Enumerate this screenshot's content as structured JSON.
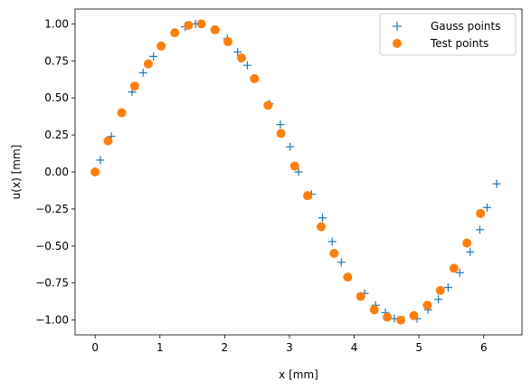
{
  "chart_data": {
    "type": "scatter",
    "title": "",
    "xlabel": "x [mm]",
    "ylabel": "u(x) [mm]",
    "xlim": [
      -0.31,
      6.59
    ],
    "ylim": [
      -1.1,
      1.1
    ],
    "xticks": [
      0,
      1,
      2,
      3,
      4,
      5,
      6
    ],
    "xtick_labels": [
      "0",
      "1",
      "2",
      "3",
      "4",
      "5",
      "6"
    ],
    "yticks": [
      -1.0,
      -0.75,
      -0.5,
      -0.25,
      0.0,
      0.25,
      0.5,
      0.75,
      1.0
    ],
    "ytick_labels": [
      "−1.00",
      "−0.75",
      "−0.50",
      "−0.25",
      "0.00",
      "0.25",
      "0.50",
      "0.75",
      "1.00"
    ],
    "grid": false,
    "legend_position": "top-right",
    "series": [
      {
        "name": "Gauss points",
        "marker": "plus",
        "color": "#1f77b4",
        "x": [
          0.08,
          0.25,
          0.57,
          0.74,
          0.9,
          1.22,
          1.39,
          1.55,
          1.87,
          2.04,
          2.2,
          2.35,
          2.69,
          2.86,
          3.01,
          3.14,
          3.34,
          3.51,
          3.66,
          3.8,
          4.16,
          4.33,
          4.48,
          4.62,
          4.97,
          5.14,
          5.3,
          5.45,
          5.63,
          5.79,
          5.94,
          6.05,
          6.2
        ],
        "y": [
          0.08,
          0.24,
          0.54,
          0.67,
          0.78,
          0.94,
          0.98,
          1.0,
          0.96,
          0.9,
          0.81,
          0.72,
          0.46,
          0.32,
          0.17,
          0.0,
          -0.15,
          -0.31,
          -0.47,
          -0.61,
          -0.82,
          -0.9,
          -0.95,
          -0.99,
          -0.99,
          -0.93,
          -0.86,
          -0.78,
          -0.68,
          -0.54,
          -0.39,
          -0.24,
          -0.08
        ]
      },
      {
        "name": "Test points",
        "marker": "circle",
        "color": "#ff7f0e",
        "x": [
          0.0,
          0.2,
          0.41,
          0.61,
          0.82,
          1.02,
          1.23,
          1.44,
          1.64,
          1.85,
          2.05,
          2.26,
          2.46,
          2.67,
          2.87,
          3.08,
          3.28,
          3.49,
          3.69,
          3.9,
          4.1,
          4.31,
          4.51,
          4.72,
          4.92,
          5.13,
          5.33,
          5.54,
          5.74,
          5.95
        ],
        "y": [
          0.0,
          0.21,
          0.4,
          0.58,
          0.73,
          0.85,
          0.94,
          0.99,
          1.0,
          0.96,
          0.88,
          0.77,
          0.63,
          0.45,
          0.26,
          0.04,
          -0.16,
          -0.37,
          -0.55,
          -0.71,
          -0.84,
          -0.93,
          -0.98,
          -1.0,
          -0.97,
          -0.9,
          -0.8,
          -0.65,
          -0.48,
          -0.28
        ]
      }
    ]
  }
}
